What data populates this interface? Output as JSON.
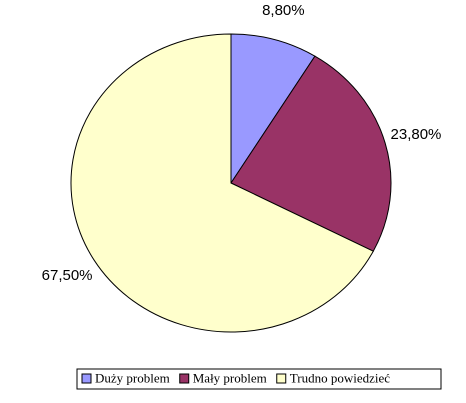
{
  "chart_data": {
    "type": "pie",
    "categories": [
      "Duży problem",
      "Mały problem",
      "Trudno powiedzieć"
    ],
    "values": [
      8.8,
      23.8,
      67.5
    ],
    "value_labels": [
      "8,80%",
      "23,80%",
      "67,50%"
    ],
    "colors": [
      "#9999ff",
      "#993366",
      "#ffffcc"
    ],
    "legend": "bottom"
  }
}
